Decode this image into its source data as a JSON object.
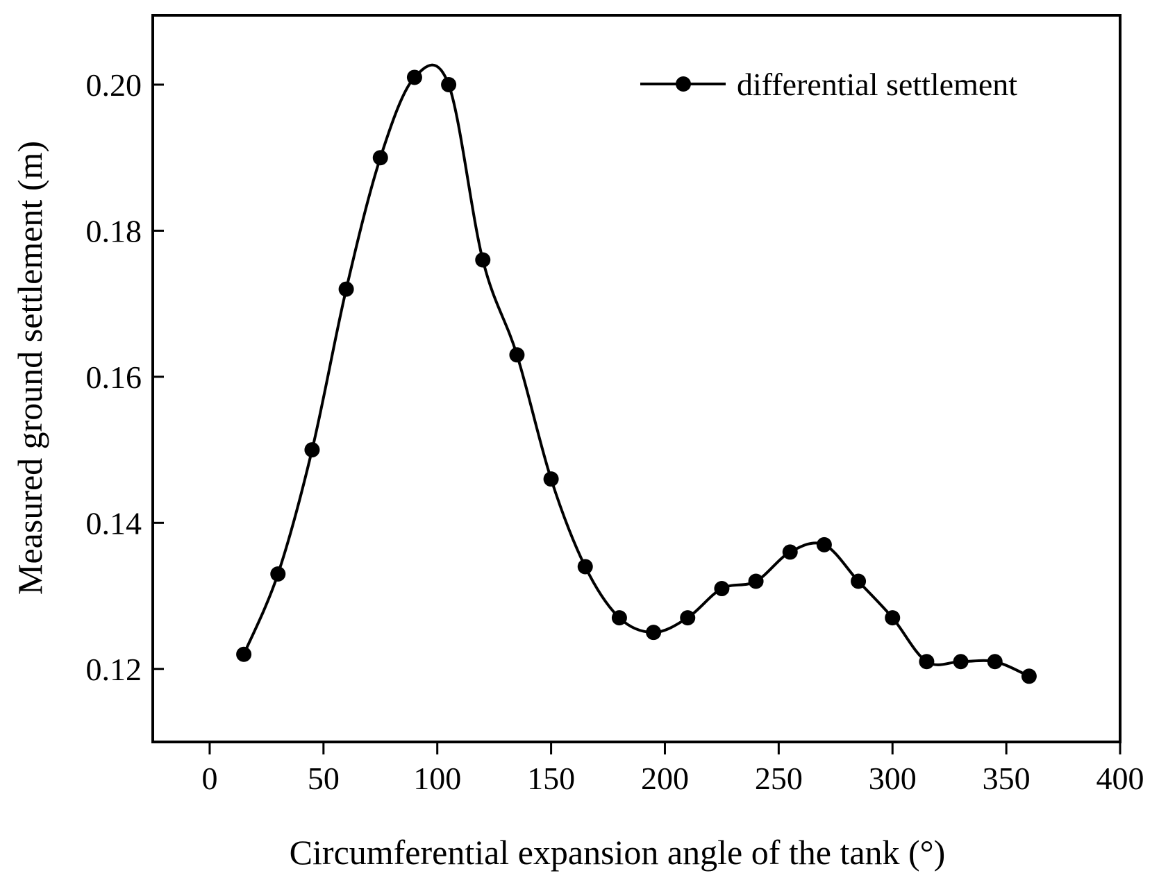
{
  "chart_data": {
    "type": "line",
    "title": "",
    "xlabel": "Circumferential expansion angle of the tank (°)",
    "ylabel": "Measured ground settlement (m)",
    "xlim": [
      -25,
      400
    ],
    "ylim": [
      0.11,
      0.2095
    ],
    "xticks": [
      0,
      50,
      100,
      150,
      200,
      250,
      300,
      350,
      400
    ],
    "xtick_labels": [
      "0",
      "50",
      "100",
      "150",
      "200",
      "250",
      "300",
      "350",
      "400"
    ],
    "yticks": [
      0.12,
      0.14,
      0.16,
      0.18,
      0.2
    ],
    "ytick_labels": [
      "0.12",
      "0.14",
      "0.16",
      "0.18",
      "0.20"
    ],
    "grid": false,
    "legend_position": "top-right",
    "series": [
      {
        "name": "differential settlement",
        "color": "#000000",
        "marker": "filled-circle",
        "smooth": true,
        "x": [
          15,
          30,
          45,
          60,
          75,
          90,
          105,
          120,
          135,
          150,
          165,
          180,
          195,
          210,
          225,
          240,
          255,
          270,
          285,
          300,
          315,
          330,
          345,
          360
        ],
        "y": [
          0.122,
          0.133,
          0.15,
          0.172,
          0.19,
          0.201,
          0.2,
          0.176,
          0.163,
          0.146,
          0.134,
          0.127,
          0.125,
          0.127,
          0.131,
          0.132,
          0.136,
          0.137,
          0.132,
          0.127,
          0.121,
          0.121,
          0.121,
          0.119
        ]
      }
    ]
  }
}
